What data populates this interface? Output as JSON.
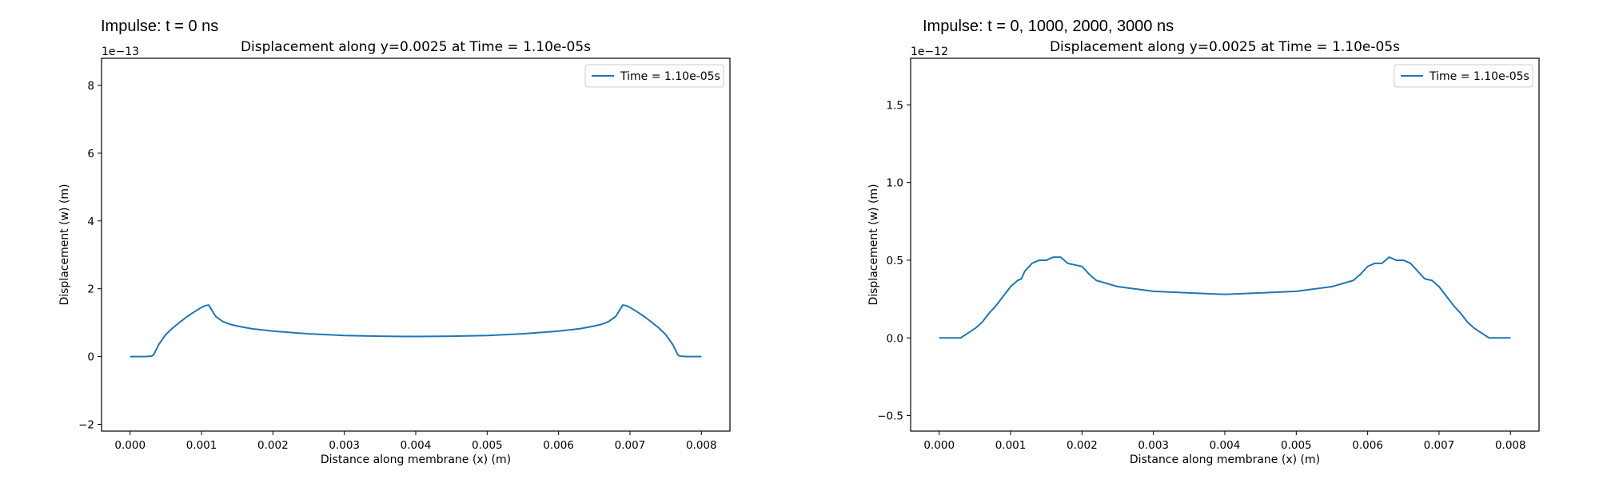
{
  "figures": [
    {
      "title": "Impulse: t = 0 ns"
    },
    {
      "title": "Impulse: t = 0, 1000, 2000, 3000 ns"
    }
  ],
  "colors": {
    "series": "#1f77b4",
    "axes": "#000000"
  },
  "chart_data": [
    {
      "type": "line",
      "title": "Displacement along y=0.0025 at Time = 1.10e-05s",
      "xlabel": "Distance along membrane (x) (m)",
      "ylabel": "Displacement (w) (m)",
      "offset_label": "1e−13",
      "xlim": [
        -0.0004,
        0.0084
      ],
      "ylim": [
        -2.2,
        8.8
      ],
      "xticks": [
        0.0,
        0.001,
        0.002,
        0.003,
        0.004,
        0.005,
        0.006,
        0.007,
        0.008
      ],
      "xtick_labels": [
        "0.000",
        "0.001",
        "0.002",
        "0.003",
        "0.004",
        "0.005",
        "0.006",
        "0.007",
        "0.008"
      ],
      "yticks": [
        -2,
        0,
        2,
        4,
        6,
        8
      ],
      "ytick_labels": [
        "−2",
        "0",
        "2",
        "4",
        "6",
        "8"
      ],
      "legend": {
        "position": "top-right",
        "entries": [
          "Time = 1.10e-05s"
        ]
      },
      "grid": false,
      "series": [
        {
          "name": "Time = 1.10e-05s",
          "x": [
            0.0,
            0.0002,
            0.0003,
            0.00033,
            0.0004,
            0.0005,
            0.0006,
            0.0007,
            0.0008,
            0.0009,
            0.001,
            0.00105,
            0.0011,
            0.00115,
            0.0012,
            0.0013,
            0.0014,
            0.0015,
            0.0017,
            0.002,
            0.0025,
            0.003,
            0.0035,
            0.004,
            0.0045,
            0.005,
            0.0055,
            0.006,
            0.0063,
            0.0065,
            0.0066,
            0.0067,
            0.0068,
            0.00685,
            0.0069,
            0.00695,
            0.007,
            0.0071,
            0.0072,
            0.0073,
            0.0074,
            0.0075,
            0.0076,
            0.00767,
            0.0077,
            0.0078,
            0.008
          ],
          "y": [
            0.0,
            0.0,
            0.01,
            0.05,
            0.35,
            0.65,
            0.85,
            1.02,
            1.18,
            1.32,
            1.45,
            1.5,
            1.52,
            1.35,
            1.18,
            1.03,
            0.95,
            0.9,
            0.82,
            0.75,
            0.67,
            0.62,
            0.6,
            0.59,
            0.6,
            0.62,
            0.67,
            0.75,
            0.82,
            0.9,
            0.95,
            1.03,
            1.18,
            1.35,
            1.52,
            1.5,
            1.45,
            1.32,
            1.18,
            1.02,
            0.85,
            0.65,
            0.35,
            0.05,
            0.01,
            0.0,
            0.0
          ]
        }
      ]
    },
    {
      "type": "line",
      "title": "Displacement along y=0.0025 at Time = 1.10e-05s",
      "xlabel": "Distance along membrane (x) (m)",
      "ylabel": "Displacement (w) (m)",
      "offset_label": "1e−12",
      "xlim": [
        -0.0004,
        0.0084
      ],
      "ylim": [
        -0.6,
        1.8
      ],
      "xticks": [
        0.0,
        0.001,
        0.002,
        0.003,
        0.004,
        0.005,
        0.006,
        0.007,
        0.008
      ],
      "xtick_labels": [
        "0.000",
        "0.001",
        "0.002",
        "0.003",
        "0.004",
        "0.005",
        "0.006",
        "0.007",
        "0.008"
      ],
      "yticks": [
        -0.5,
        0.0,
        0.5,
        1.0,
        1.5
      ],
      "ytick_labels": [
        "−0.5",
        "0.0",
        "0.5",
        "1.0",
        "1.5"
      ],
      "legend": {
        "position": "top-right",
        "entries": [
          "Time = 1.10e-05s"
        ]
      },
      "grid": false,
      "series": [
        {
          "name": "Time = 1.10e-05s",
          "x": [
            0.0,
            0.0002,
            0.0003,
            0.0004,
            0.0005,
            0.0006,
            0.0007,
            0.0008,
            0.0009,
            0.001,
            0.0011,
            0.00115,
            0.0012,
            0.0013,
            0.0014,
            0.0015,
            0.0016,
            0.0017,
            0.0018,
            0.0019,
            0.002,
            0.0021,
            0.0022,
            0.0025,
            0.003,
            0.0035,
            0.004,
            0.0045,
            0.005,
            0.0055,
            0.0058,
            0.0059,
            0.006,
            0.0061,
            0.0062,
            0.0063,
            0.0064,
            0.0065,
            0.0066,
            0.0067,
            0.0068,
            0.0069,
            0.007,
            0.0071,
            0.0072,
            0.0073,
            0.0074,
            0.0075,
            0.0076,
            0.0077,
            0.0078,
            0.008
          ],
          "y": [
            0.0,
            0.0,
            0.0,
            0.03,
            0.06,
            0.1,
            0.16,
            0.21,
            0.27,
            0.33,
            0.37,
            0.38,
            0.43,
            0.48,
            0.5,
            0.5,
            0.52,
            0.52,
            0.48,
            0.47,
            0.46,
            0.41,
            0.37,
            0.33,
            0.3,
            0.29,
            0.28,
            0.29,
            0.3,
            0.33,
            0.37,
            0.41,
            0.46,
            0.48,
            0.48,
            0.52,
            0.5,
            0.5,
            0.48,
            0.43,
            0.38,
            0.37,
            0.33,
            0.27,
            0.21,
            0.16,
            0.1,
            0.06,
            0.03,
            0.0,
            0.0,
            0.0
          ]
        }
      ]
    }
  ]
}
